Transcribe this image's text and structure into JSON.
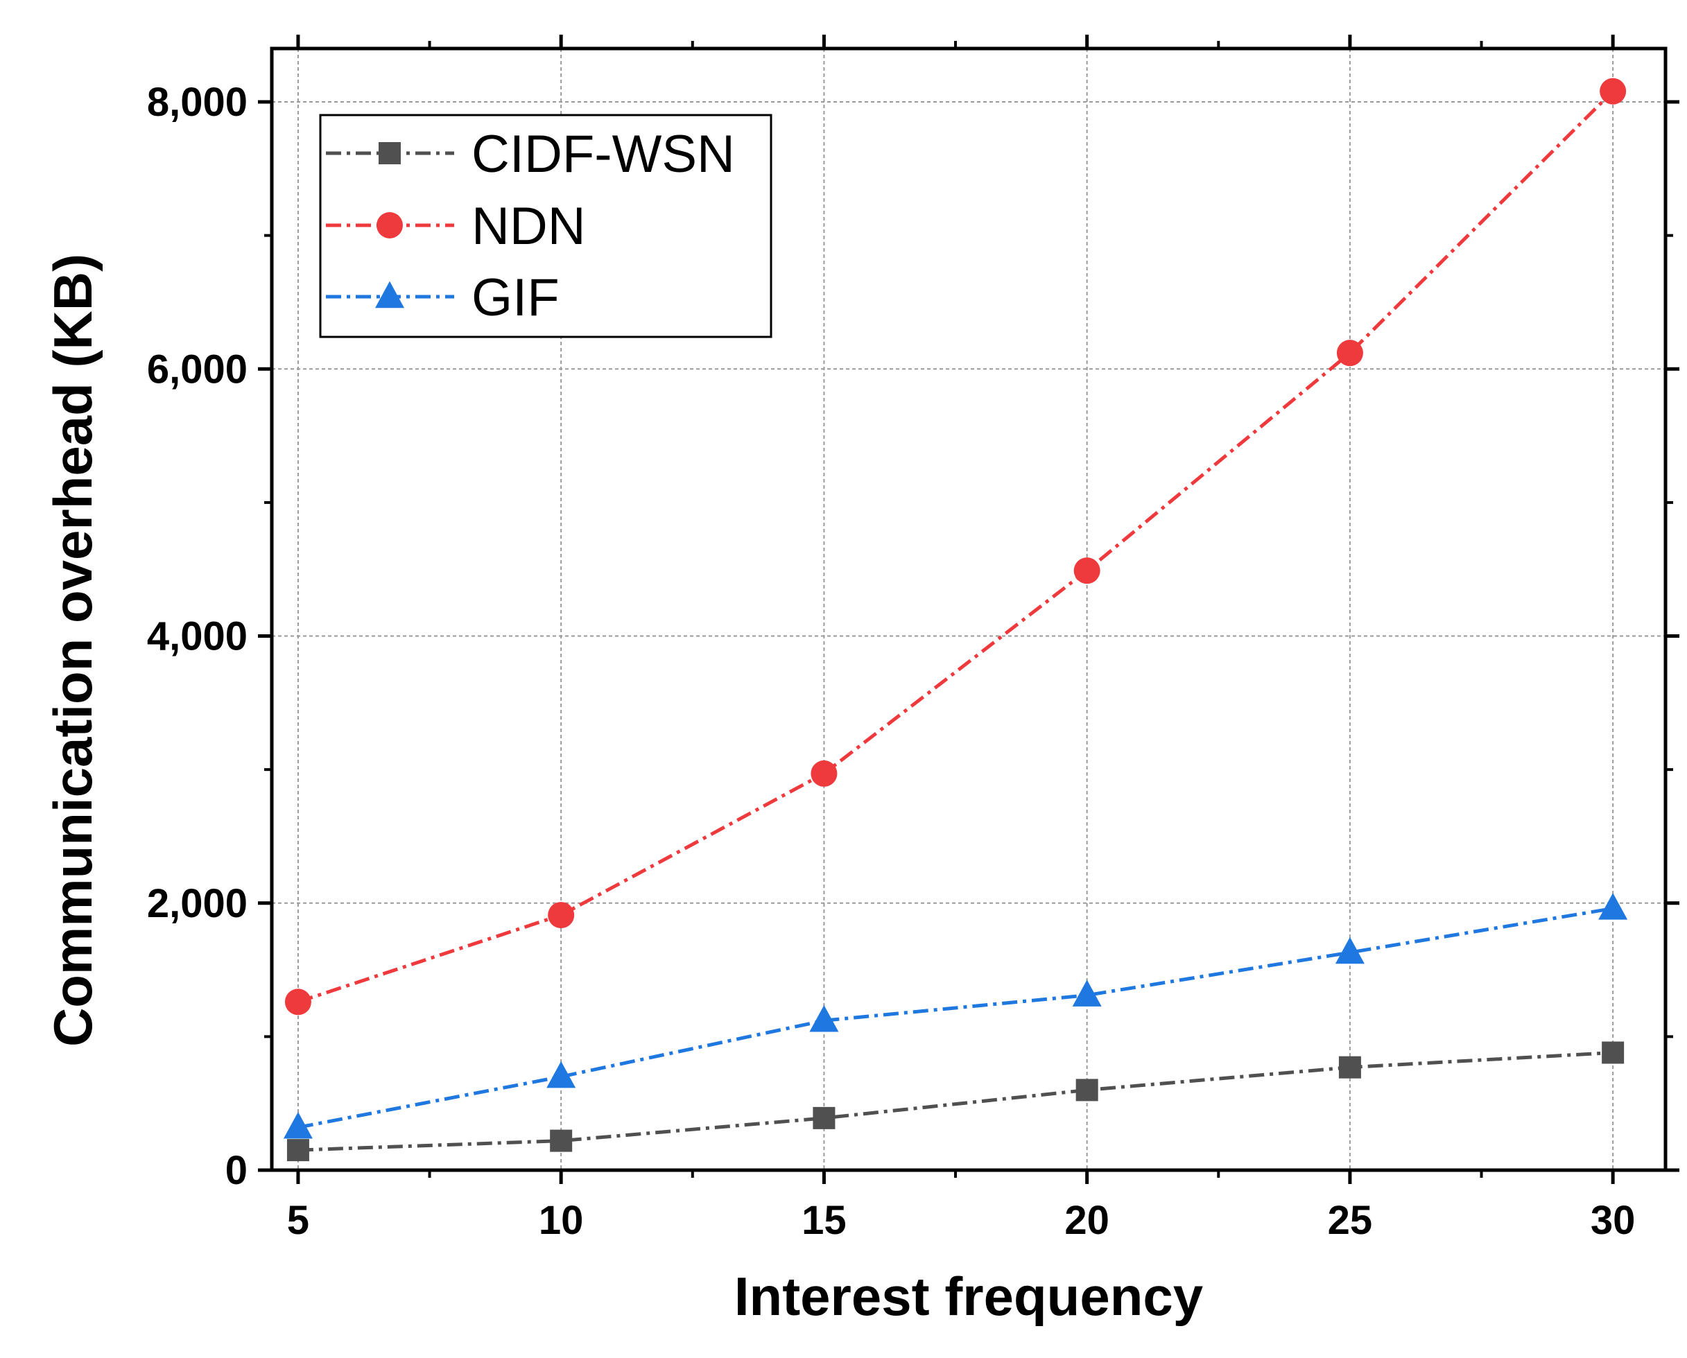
{
  "chart_data": {
    "type": "line",
    "title": "",
    "xlabel": "Interest frequency",
    "ylabel": "Communication overhead (KB)",
    "x": [
      5,
      10,
      15,
      20,
      25,
      30
    ],
    "xlim": [
      4.5,
      31
    ],
    "ylim": [
      0,
      8400
    ],
    "xticks": [
      5,
      10,
      15,
      20,
      25,
      30
    ],
    "xtick_labels": [
      "5",
      "10",
      "15",
      "20",
      "25",
      "30"
    ],
    "xticks_minor": [
      7.5,
      12.5,
      17.5,
      22.5,
      27.5
    ],
    "yticks": [
      0,
      2000,
      4000,
      6000,
      8000
    ],
    "ytick_labels": [
      "0",
      "2,000",
      "4,000",
      "6,000",
      "8,000"
    ],
    "yticks_minor": [
      1000,
      3000,
      5000,
      7000
    ],
    "grid": true,
    "legend_position": "top-left",
    "series": [
      {
        "name": "CIDF-WSN",
        "marker": "square",
        "color": "#505050",
        "values": [
          150,
          220,
          390,
          600,
          770,
          880
        ]
      },
      {
        "name": "NDN",
        "marker": "circle",
        "color": "#ee3a3d",
        "values": [
          1260,
          1910,
          2970,
          4490,
          6120,
          8080
        ]
      },
      {
        "name": "GIF",
        "marker": "triangle",
        "color": "#1f77e0",
        "values": [
          320,
          700,
          1120,
          1310,
          1630,
          1960
        ]
      }
    ]
  }
}
